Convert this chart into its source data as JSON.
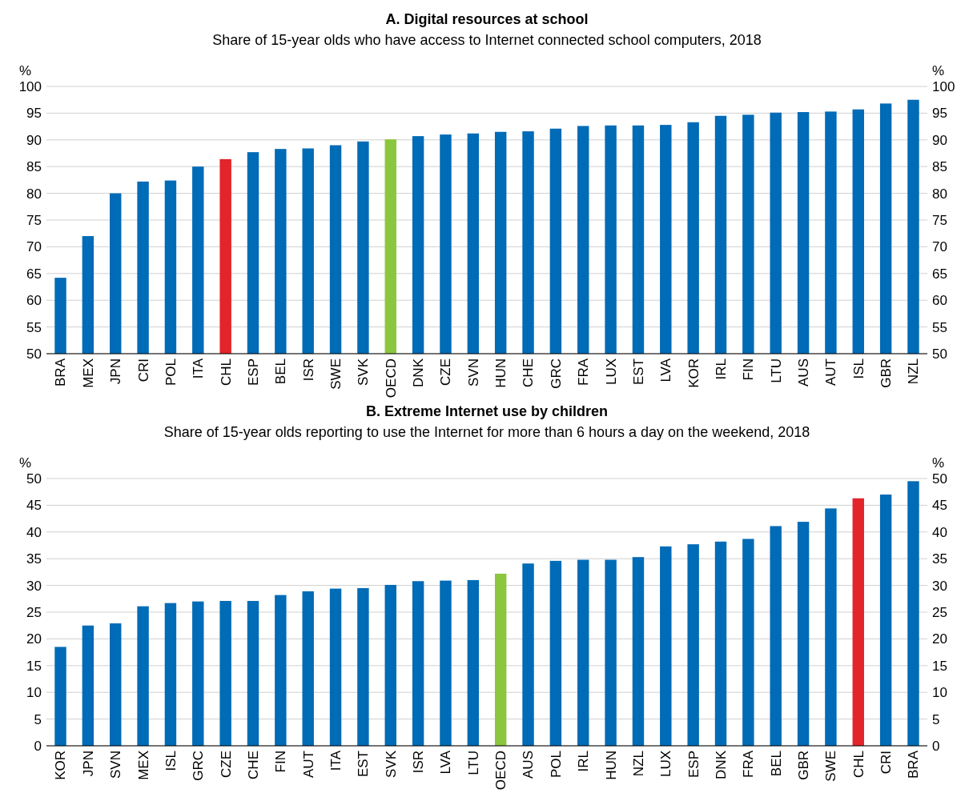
{
  "chart_data": [
    {
      "type": "bar",
      "title": "A. Digital resources at school",
      "subtitle": "Share of 15-year olds who have access to Internet connected school computers, 2018",
      "ylabel": "%",
      "y2label": "%",
      "categories": [
        "BRA",
        "MEX",
        "JPN",
        "CRI",
        "POL",
        "ITA",
        "CHL",
        "ESP",
        "BEL",
        "ISR",
        "SWE",
        "SVK",
        "OECD",
        "DNK",
        "CZE",
        "SVN",
        "HUN",
        "CHE",
        "GRC",
        "FRA",
        "LUX",
        "EST",
        "LVA",
        "KOR",
        "IRL",
        "FIN",
        "LTU",
        "AUS",
        "AUT",
        "ISL",
        "GBR",
        "NZL"
      ],
      "values": [
        64.2,
        72,
        80,
        82.2,
        82.4,
        85,
        86.4,
        87.7,
        88.3,
        88.4,
        89,
        89.7,
        90.1,
        90.7,
        91,
        91.2,
        91.5,
        91.6,
        92.1,
        92.6,
        92.7,
        92.7,
        92.8,
        93.3,
        94.5,
        94.7,
        95.1,
        95.2,
        95.3,
        95.7,
        96.8,
        97.5
      ],
      "colors": [
        "#006bb6",
        "#006bb6",
        "#006bb6",
        "#006bb6",
        "#006bb6",
        "#006bb6",
        "#e3242b",
        "#006bb6",
        "#006bb6",
        "#006bb6",
        "#006bb6",
        "#006bb6",
        "#8cc63f",
        "#006bb6",
        "#006bb6",
        "#006bb6",
        "#006bb6",
        "#006bb6",
        "#006bb6",
        "#006bb6",
        "#006bb6",
        "#006bb6",
        "#006bb6",
        "#006bb6",
        "#006bb6",
        "#006bb6",
        "#006bb6",
        "#006bb6",
        "#006bb6",
        "#006bb6",
        "#006bb6",
        "#006bb6"
      ],
      "ylim": [
        50,
        100
      ],
      "yticks": [
        50,
        55,
        60,
        65,
        70,
        75,
        80,
        85,
        90,
        95,
        100
      ],
      "y2lim": [
        50,
        100
      ],
      "y2ticks": [
        50,
        55,
        60,
        65,
        70,
        75,
        80,
        85,
        90,
        95,
        100
      ],
      "grid": "y"
    },
    {
      "type": "bar",
      "title": "B. Extreme Internet use by children",
      "subtitle": "Share of 15-year olds reporting to use the Internet for more than 6 hours a day on the weekend, 2018",
      "ylabel": "%",
      "y2label": "%",
      "categories": [
        "KOR",
        "JPN",
        "SVN",
        "MEX",
        "ISL",
        "GRC",
        "CZE",
        "CHE",
        "FIN",
        "AUT",
        "ITA",
        "EST",
        "SVK",
        "ISR",
        "LVA",
        "LTU",
        "OECD",
        "AUS",
        "POL",
        "IRL",
        "HUN",
        "NZL",
        "LUX",
        "ESP",
        "DNK",
        "FRA",
        "BEL",
        "GBR",
        "SWE",
        "CHL",
        "CRI",
        "BRA"
      ],
      "values": [
        18.5,
        22.5,
        22.9,
        26.1,
        26.7,
        27,
        27.1,
        27.1,
        28.2,
        28.9,
        29.4,
        29.5,
        30.1,
        30.8,
        30.9,
        31,
        32.2,
        34.1,
        34.6,
        34.8,
        34.8,
        35.3,
        37.3,
        37.7,
        38.2,
        38.7,
        41.1,
        41.9,
        44.4,
        46.3,
        47,
        49.5
      ],
      "colors": [
        "#006bb6",
        "#006bb6",
        "#006bb6",
        "#006bb6",
        "#006bb6",
        "#006bb6",
        "#006bb6",
        "#006bb6",
        "#006bb6",
        "#006bb6",
        "#006bb6",
        "#006bb6",
        "#006bb6",
        "#006bb6",
        "#006bb6",
        "#006bb6",
        "#8cc63f",
        "#006bb6",
        "#006bb6",
        "#006bb6",
        "#006bb6",
        "#006bb6",
        "#006bb6",
        "#006bb6",
        "#006bb6",
        "#006bb6",
        "#006bb6",
        "#006bb6",
        "#006bb6",
        "#e3242b",
        "#006bb6",
        "#006bb6"
      ],
      "ylim": [
        0,
        50
      ],
      "yticks": [
        0,
        5,
        10,
        15,
        20,
        25,
        30,
        35,
        40,
        45,
        50
      ],
      "y2lim": [
        0,
        50
      ],
      "y2ticks": [
        0,
        5,
        10,
        15,
        20,
        25,
        30,
        35,
        40,
        45,
        50
      ],
      "grid": "y"
    }
  ]
}
